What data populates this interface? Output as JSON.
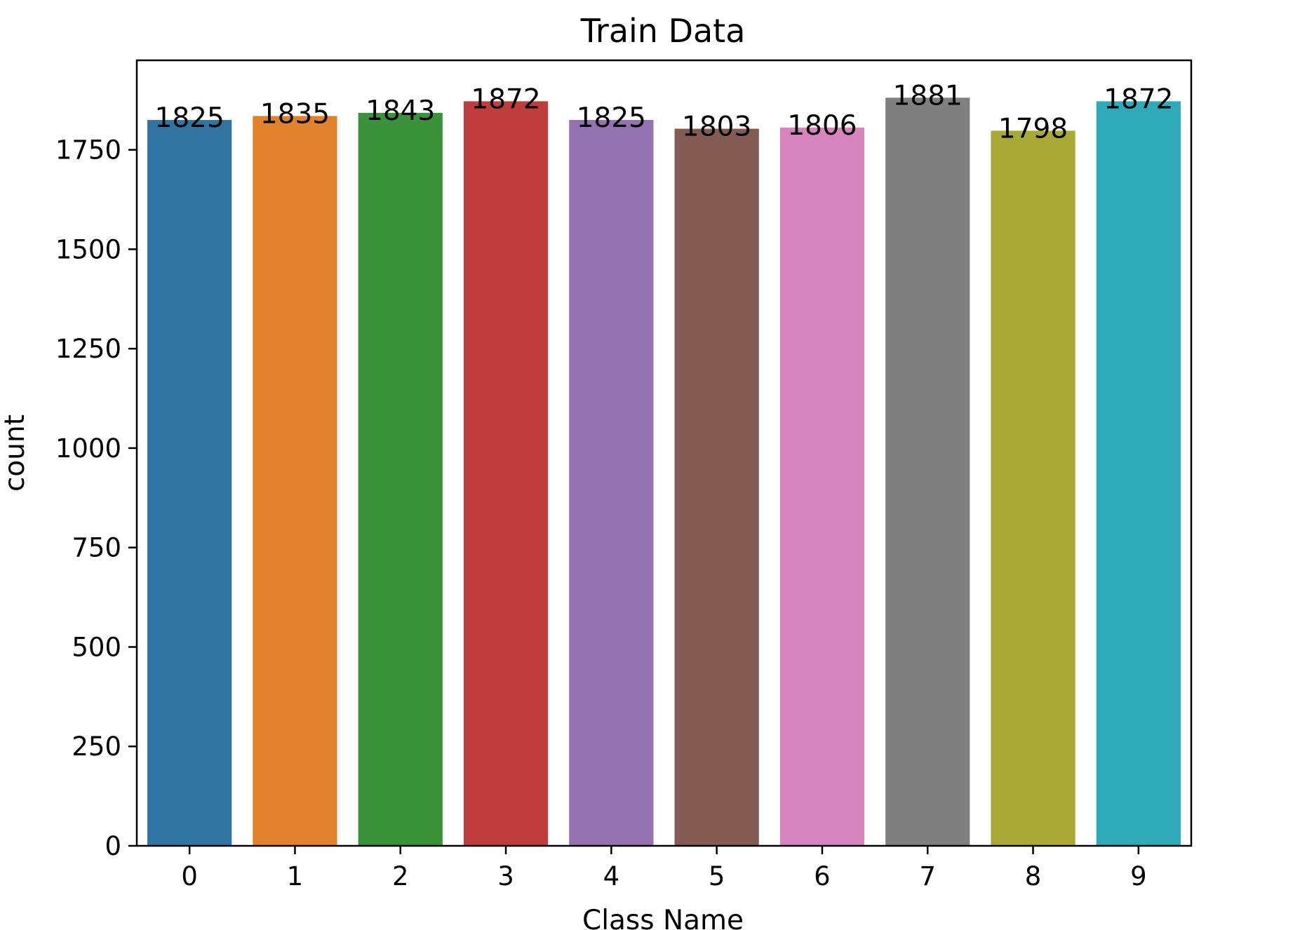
{
  "chart_data": {
    "type": "bar",
    "title": "Train Data",
    "xlabel": "Class Name",
    "ylabel": "count",
    "categories": [
      "0",
      "1",
      "2",
      "3",
      "4",
      "5",
      "6",
      "7",
      "8",
      "9"
    ],
    "values": [
      1825,
      1835,
      1843,
      1872,
      1825,
      1803,
      1806,
      1881,
      1798,
      1872
    ],
    "data_labels": [
      "1825",
      "1835",
      "1843",
      "1872",
      "1825",
      "1803",
      "1806",
      "1881",
      "1798",
      "1872"
    ],
    "colors": [
      "#3274a1",
      "#e1812c",
      "#3a923a",
      "#c03d3e",
      "#9372b2",
      "#845b53",
      "#d684bd",
      "#7f7f7f",
      "#a9aa35",
      "#2eaab8"
    ],
    "yticks": [
      0,
      250,
      500,
      750,
      1000,
      1250,
      1500,
      1750
    ],
    "ytick_labels": [
      "0",
      "250",
      "500",
      "750",
      "1000",
      "1250",
      "1500",
      "1750"
    ],
    "ylim": [
      0,
      1975
    ],
    "grid": false,
    "legend": "none"
  }
}
